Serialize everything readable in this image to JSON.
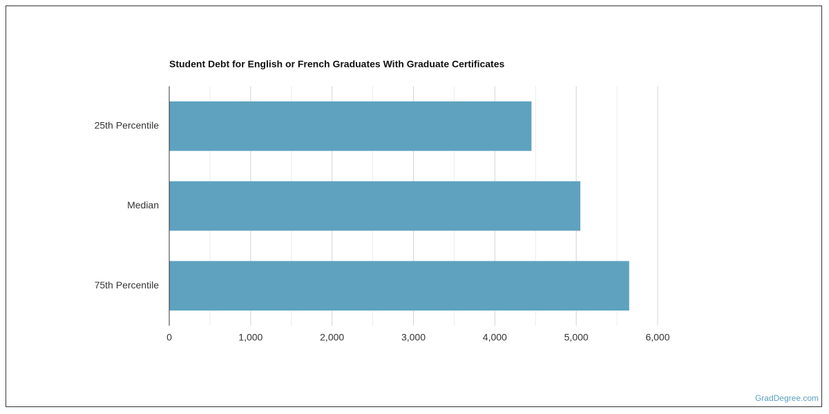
{
  "chart_data": {
    "type": "bar",
    "orientation": "horizontal",
    "title": "Student Debt for English or French Graduates With Graduate Certificates",
    "categories": [
      "25th Percentile",
      "Median",
      "75th Percentile"
    ],
    "values": [
      4450,
      5050,
      5650
    ],
    "color": "#5ea2bf",
    "xlim": [
      0,
      6000
    ],
    "xticks": [
      0,
      {
        "value": 1000,
        "label": "1,000"
      },
      {
        "value": 2000,
        "label": "2,000"
      },
      {
        "value": 3000,
        "label": "3,000"
      },
      {
        "value": 4000,
        "label": "4,000"
      },
      {
        "value": 5000,
        "label": "5,000"
      },
      {
        "value": 6000,
        "label": "6,000"
      }
    ],
    "xminorticks": [
      500,
      1500,
      2500,
      3500,
      4500,
      5500
    ],
    "grid": true,
    "credit": "GradDegree.com"
  }
}
